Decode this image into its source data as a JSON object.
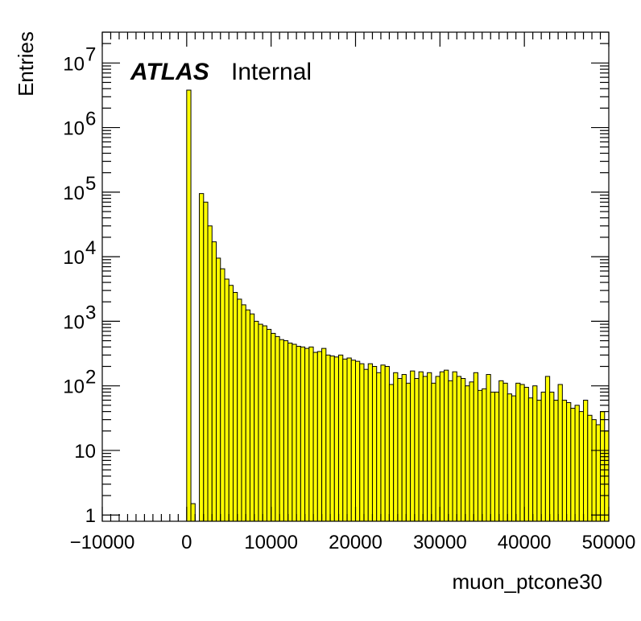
{
  "chart_data": {
    "type": "bar",
    "title": "",
    "label": {
      "experiment": "ATLAS",
      "status": "Internal"
    },
    "xlabel": "muon_ptcone30",
    "ylabel": "Entries",
    "xlim": [
      -10000,
      50000
    ],
    "ylim": [
      0.8,
      30000000
    ],
    "yscale": "log",
    "x_ticks": [
      -10000,
      0,
      10000,
      20000,
      30000,
      40000,
      50000
    ],
    "x_tick_labels": [
      "−10000",
      "0",
      "10000",
      "20000",
      "30000",
      "40000",
      "50000"
    ],
    "y_tick_labels": [
      {
        "value": 1,
        "base": "1",
        "exp": ""
      },
      {
        "value": 10,
        "base": "10",
        "exp": ""
      },
      {
        "value": 100,
        "base": "10",
        "exp": "2"
      },
      {
        "value": 1000,
        "base": "10",
        "exp": "3"
      },
      {
        "value": 10000,
        "base": "10",
        "exp": "4"
      },
      {
        "value": 100000,
        "base": "10",
        "exp": "5"
      },
      {
        "value": 1000000,
        "base": "10",
        "exp": "6"
      },
      {
        "value": 10000000,
        "base": "10",
        "exp": "7"
      }
    ],
    "fill_color": "#ffff00",
    "line_color": "#000000",
    "bin_width": 500,
    "bins_start": -10000,
    "values": [
      0,
      0,
      0,
      0,
      0,
      0,
      0,
      0,
      0,
      0,
      0,
      0,
      0,
      0,
      0,
      0,
      0,
      0,
      0,
      0,
      3800000,
      1.5,
      0,
      95000,
      70000,
      30000,
      17000,
      9500,
      6500,
      4500,
      3600,
      2800,
      2200,
      1800,
      1500,
      1300,
      1000,
      900,
      850,
      750,
      650,
      580,
      520,
      500,
      460,
      440,
      410,
      400,
      380,
      400,
      330,
      340,
      380,
      300,
      290,
      280,
      300,
      260,
      270,
      250,
      240,
      220,
      180,
      220,
      200,
      160,
      210,
      200,
      105,
      160,
      130,
      150,
      110,
      170,
      130,
      165,
      140,
      160,
      110,
      140,
      165,
      175,
      120,
      165,
      140,
      130,
      100,
      115,
      160,
      85,
      90,
      150,
      80,
      80,
      120,
      110,
      75,
      70,
      110,
      105,
      95,
      65,
      100,
      60,
      80,
      140,
      80,
      60,
      105,
      60,
      55,
      45,
      50,
      40,
      60,
      35,
      30,
      25,
      40,
      20
    ]
  }
}
